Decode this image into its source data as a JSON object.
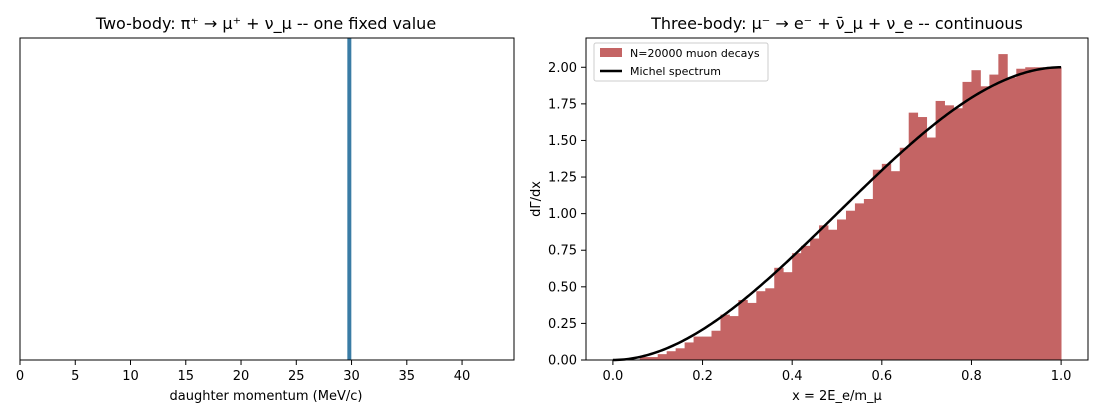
{
  "chart_data": [
    {
      "type": "line",
      "title": "Two-body: π⁺ → μ⁺ + ν_μ -- one fixed value",
      "xlabel": "daughter momentum (MeV/c)",
      "ylabel": "",
      "xlim": [
        0,
        44.7
      ],
      "yticks_shown": false,
      "xticks": [
        0,
        5,
        10,
        15,
        20,
        25,
        30,
        35,
        40
      ],
      "vline": {
        "x": 29.8,
        "color": "#3a7ca5"
      },
      "grid": false
    },
    {
      "type": "bar",
      "title": "Three-body: μ⁻ → e⁻ + ν̄_μ + ν_e -- continuous",
      "xlabel": "x = 2E_e/m_μ",
      "ylabel": "dΓ/dx",
      "xlim": [
        -0.06,
        1.06
      ],
      "ylim": [
        0,
        2.2
      ],
      "xticks": [
        0.0,
        0.2,
        0.4,
        0.6,
        0.8,
        1.0
      ],
      "yticks": [
        0.0,
        0.25,
        0.5,
        0.75,
        1.0,
        1.25,
        1.5,
        1.75,
        2.0
      ],
      "legend_position": "top-left",
      "grid": false,
      "series": [
        {
          "name": "N=20000 muon decays",
          "kind": "histogram",
          "color": "#c46464",
          "bin_width": 0.02,
          "bin_start": 0.0,
          "values": [
            0.0,
            0.0,
            0.0,
            0.02,
            0.02,
            0.04,
            0.06,
            0.08,
            0.12,
            0.16,
            0.16,
            0.2,
            0.31,
            0.3,
            0.41,
            0.39,
            0.47,
            0.49,
            0.63,
            0.6,
            0.73,
            0.78,
            0.83,
            0.92,
            0.89,
            0.96,
            1.02,
            1.07,
            1.1,
            1.3,
            1.34,
            1.29,
            1.45,
            1.69,
            1.66,
            1.52,
            1.77,
            1.74,
            1.72,
            1.9,
            1.98,
            1.87,
            1.95,
            2.09,
            1.93,
            1.99,
            2.0,
            2.0,
            2.0,
            2.0
          ]
        },
        {
          "name": "Michel spectrum",
          "kind": "line",
          "color": "#000000",
          "function": "2*x^2*(3-2x)"
        }
      ]
    }
  ]
}
